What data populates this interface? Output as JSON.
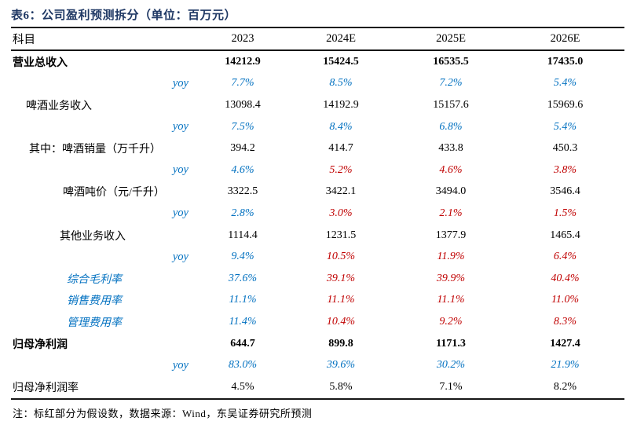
{
  "page": {
    "title": "表6：公司盈利预测拆分（单位：百万元）",
    "note": "注：标红部分为假设数，数据来源：Wind，东吴证券研究所预测"
  },
  "colors": {
    "title_navy": "#1F3864",
    "highlight_blue": "#0070C0",
    "assumption_red": "#C00000",
    "border": "#161616"
  },
  "table": {
    "columns": [
      "科目",
      "2023",
      "2024E",
      "2025E",
      "2026E"
    ],
    "rows": [
      {
        "label": "营业总收入",
        "label_style": "bold",
        "indent": "0",
        "cells": [
          "14212.9",
          "15424.5",
          "16535.5",
          "17435.0"
        ],
        "cell_styles": [
          "bold",
          "bold",
          "bold",
          "bold"
        ]
      },
      {
        "label": "yoy",
        "label_style": "yoy",
        "indent": "0",
        "cells": [
          "7.7%",
          "8.5%",
          "7.2%",
          "5.4%"
        ],
        "cell_styles": [
          "blue",
          "blue",
          "blue",
          "blue"
        ]
      },
      {
        "label": "啤酒业务收入",
        "label_style": "plain",
        "indent": "1",
        "cells": [
          "13098.4",
          "14192.9",
          "15157.6",
          "15969.6"
        ],
        "cell_styles": [
          "plain",
          "plain",
          "plain",
          "plain"
        ]
      },
      {
        "label": "yoy",
        "label_style": "yoy",
        "indent": "0",
        "cells": [
          "7.5%",
          "8.4%",
          "6.8%",
          "5.4%"
        ],
        "cell_styles": [
          "blue",
          "blue",
          "blue",
          "blue"
        ]
      },
      {
        "label": "其中：啤酒销量（万千升）",
        "label_style": "plain",
        "indent": "2",
        "cells": [
          "394.2",
          "414.7",
          "433.8",
          "450.3"
        ],
        "cell_styles": [
          "plain",
          "plain",
          "plain",
          "plain"
        ]
      },
      {
        "label": "yoy",
        "label_style": "yoy",
        "indent": "0",
        "cells": [
          "4.6%",
          "5.2%",
          "4.6%",
          "3.8%"
        ],
        "cell_styles": [
          "blue",
          "red",
          "red",
          "red"
        ]
      },
      {
        "label": "啤酒吨价（元/千升）",
        "label_style": "plain",
        "indent": "3",
        "cells": [
          "3322.5",
          "3422.1",
          "3494.0",
          "3546.4"
        ],
        "cell_styles": [
          "plain",
          "plain",
          "plain",
          "plain"
        ]
      },
      {
        "label": "yoy",
        "label_style": "yoy",
        "indent": "0",
        "cells": [
          "2.8%",
          "3.0%",
          "2.1%",
          "1.5%"
        ],
        "cell_styles": [
          "blue",
          "red",
          "red",
          "red"
        ]
      },
      {
        "label": "其他业务收入",
        "label_style": "plain",
        "indent": "3b",
        "cells": [
          "1114.4",
          "1231.5",
          "1377.9",
          "1465.4"
        ],
        "cell_styles": [
          "plain",
          "plain",
          "plain",
          "plain"
        ]
      },
      {
        "label": "yoy",
        "label_style": "yoy",
        "indent": "0",
        "cells": [
          "9.4%",
          "10.5%",
          "11.9%",
          "6.4%"
        ],
        "cell_styles": [
          "blue",
          "red",
          "red",
          "red"
        ]
      },
      {
        "label": "综合毛利率",
        "label_style": "blue",
        "indent": "4",
        "cells": [
          "37.6%",
          "39.1%",
          "39.9%",
          "40.4%"
        ],
        "cell_styles": [
          "blue",
          "red",
          "red",
          "red"
        ]
      },
      {
        "label": "销售费用率",
        "label_style": "blue",
        "indent": "4",
        "cells": [
          "11.1%",
          "11.1%",
          "11.1%",
          "11.0%"
        ],
        "cell_styles": [
          "blue",
          "red",
          "red",
          "red"
        ]
      },
      {
        "label": "管理费用率",
        "label_style": "blue",
        "indent": "4",
        "cells": [
          "11.4%",
          "10.4%",
          "9.2%",
          "8.3%"
        ],
        "cell_styles": [
          "blue",
          "red",
          "red",
          "red"
        ]
      },
      {
        "label": "归母净利润",
        "label_style": "bold",
        "indent": "0",
        "cells": [
          "644.7",
          "899.8",
          "1171.3",
          "1427.4"
        ],
        "cell_styles": [
          "bold",
          "bold",
          "bold",
          "bold"
        ]
      },
      {
        "label": "yoy",
        "label_style": "yoy",
        "indent": "0",
        "cells": [
          "83.0%",
          "39.6%",
          "30.2%",
          "21.9%"
        ],
        "cell_styles": [
          "blue",
          "blue",
          "blue",
          "blue"
        ]
      },
      {
        "label": "归母净利润率",
        "label_style": "plain",
        "indent": "0",
        "cells": [
          "4.5%",
          "5.8%",
          "7.1%",
          "8.2%"
        ],
        "cell_styles": [
          "plain",
          "plain",
          "plain",
          "plain"
        ]
      }
    ]
  }
}
